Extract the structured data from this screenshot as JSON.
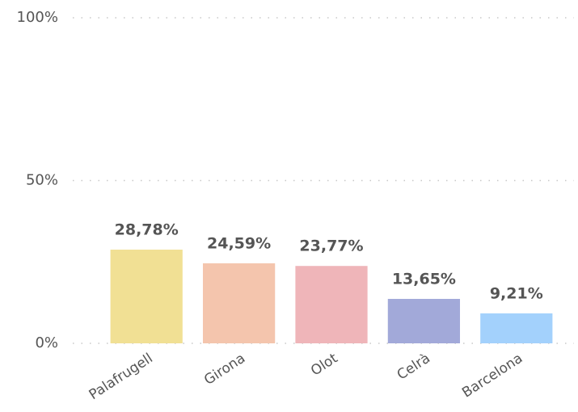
{
  "chart_data": {
    "type": "bar",
    "categories": [
      "Palafrugell",
      "Girona",
      "Olot",
      "Celrà",
      "Barcelona"
    ],
    "values": [
      28.78,
      24.59,
      23.77,
      13.65,
      9.21
    ],
    "value_labels": [
      "28,78%",
      "24,59%",
      "23,77%",
      "13,65%",
      "9,21%"
    ],
    "colors": [
      "#f1e094",
      "#f4c5ad",
      "#efb5b9",
      "#a2a9d9",
      "#a3d1fc"
    ],
    "ylim": [
      0,
      100
    ],
    "yticks": [
      {
        "value": 0,
        "label": "0%"
      },
      {
        "value": 50,
        "label": "50%"
      },
      {
        "value": 100,
        "label": "100%"
      }
    ],
    "grid": true
  }
}
